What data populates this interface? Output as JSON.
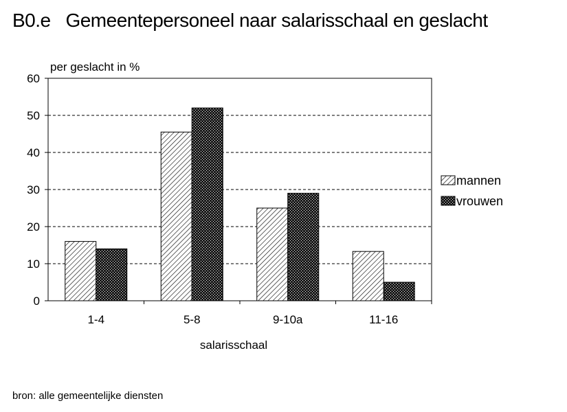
{
  "header": {
    "code": "B0.e",
    "title": "Gemeentepersoneel naar salarisschaal en geslacht"
  },
  "source_note": "bron: alle gemeentelijke diensten",
  "colors": {
    "mannen": "#ffffff",
    "vrouwen": "#333333",
    "grid": "#000000"
  },
  "chart_data": {
    "type": "bar",
    "title": "Gemeentepersoneel naar salarisschaal en geslacht",
    "ylabel": "per geslacht in %",
    "xlabel": "salarisschaal",
    "ylim": [
      0,
      60
    ],
    "yticks": [
      0,
      10,
      20,
      30,
      40,
      50,
      60
    ],
    "grid": true,
    "legend_position": "right",
    "categories": [
      "1-4",
      "5-8",
      "9-10a",
      "11-16"
    ],
    "series": [
      {
        "name": "mannen",
        "values": [
          16,
          45.5,
          25,
          13.3
        ],
        "pattern": "diagonal-hatch"
      },
      {
        "name": "vrouwen",
        "values": [
          14,
          52,
          29,
          5
        ],
        "pattern": "dark-crosshatch"
      }
    ]
  }
}
